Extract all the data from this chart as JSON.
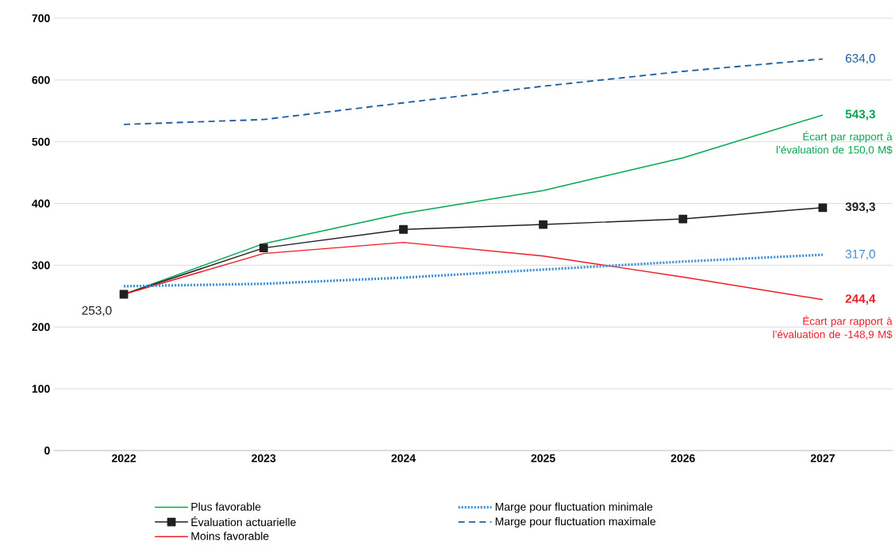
{
  "chart_data": {
    "type": "line",
    "categories": [
      "2022",
      "2023",
      "2024",
      "2025",
      "2026",
      "2027"
    ],
    "ylim": [
      0,
      700
    ],
    "yticks": [
      0,
      100,
      200,
      300,
      400,
      500,
      600,
      700
    ],
    "grid": "y",
    "legend": "bottom",
    "series": [
      {
        "name": "Plus favorable",
        "color": "#00a651",
        "line_style": "solid",
        "marker": "none",
        "values": [
          253,
          335,
          384,
          421,
          474,
          543.3
        ],
        "value_labels": [
          null,
          null,
          null,
          null,
          null,
          "**543,3**"
        ]
      },
      {
        "name": "Évaluation actuarielle",
        "color": "#231f20",
        "line_style": "solid",
        "marker": "square",
        "values": [
          253,
          328,
          358,
          366,
          375,
          393.3
        ],
        "value_labels": [
          "253,0",
          null,
          null,
          null,
          null,
          "**393,3**"
        ]
      },
      {
        "name": "Moins favorable",
        "color": "#ed1c24",
        "line_style": "solid",
        "marker": "none",
        "values": [
          253,
          319,
          337,
          315,
          281,
          244.4
        ],
        "value_labels": [
          null,
          null,
          null,
          null,
          null,
          "**244,4**"
        ]
      },
      {
        "name": "Marge pour fluctuation minimale",
        "color": "#3d8fd6",
        "line_style": "dotted",
        "marker": "none",
        "values": [
          266,
          270,
          280,
          293,
          306,
          317
        ],
        "value_labels": [
          null,
          null,
          null,
          null,
          null,
          "317,0"
        ]
      },
      {
        "name": "Marge pour fluctuation maximale",
        "color": "#1f5fa0",
        "line_style": "dashed",
        "marker": "none",
        "values": [
          528,
          536,
          563,
          590,
          614,
          634
        ],
        "value_labels": [
          null,
          null,
          null,
          null,
          null,
          "634,0"
        ]
      }
    ],
    "annotations": [
      {
        "text": "Écart par rapport à l’évaluation de 150,0 M$",
        "x": "2027",
        "y": 543.3
      },
      {
        "text": "Écart par rapport à l’évaluation de -148,9 M$",
        "x": "2027",
        "y": 244.4
      }
    ]
  }
}
